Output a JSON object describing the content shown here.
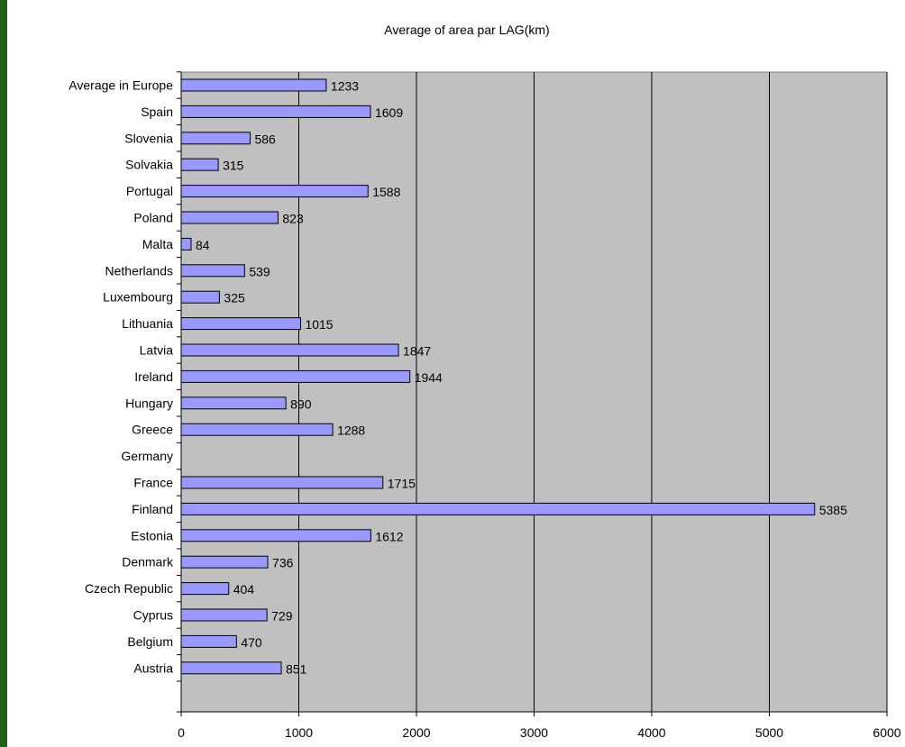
{
  "chart_data": {
    "type": "bar",
    "orientation": "horizontal",
    "title": "Average of area par LAG(km)",
    "xlabel": "",
    "ylabel": "",
    "xlim": [
      0,
      6000
    ],
    "x_ticks": [
      0,
      1000,
      2000,
      3000,
      4000,
      5000,
      6000
    ],
    "grid": "vertical",
    "legend": "none",
    "colors": {
      "bar_fill": "#9999ff",
      "bar_stroke": "#000000",
      "plot_background": "#c0c0c0",
      "gridline": "#000000",
      "frame_border": "#1f5f16"
    },
    "categories": [
      "Average in Europe",
      "Spain",
      "Slovenia",
      "Solvakia",
      "Portugal",
      "Poland",
      "Malta",
      "Netherlands",
      "Luxembourg",
      "Lithuania",
      "Latvia",
      "Ireland",
      "Hungary",
      "Greece",
      "Germany",
      "France",
      "Finland",
      "Estonia",
      "Denmark",
      "Czech Republic",
      "Cyprus",
      "Belgium",
      "Austria"
    ],
    "values": [
      1233,
      1609,
      586,
      315,
      1588,
      823,
      84,
      539,
      325,
      1015,
      1847,
      1944,
      890,
      1288,
      null,
      1715,
      5385,
      1612,
      736,
      404,
      729,
      470,
      851
    ]
  }
}
